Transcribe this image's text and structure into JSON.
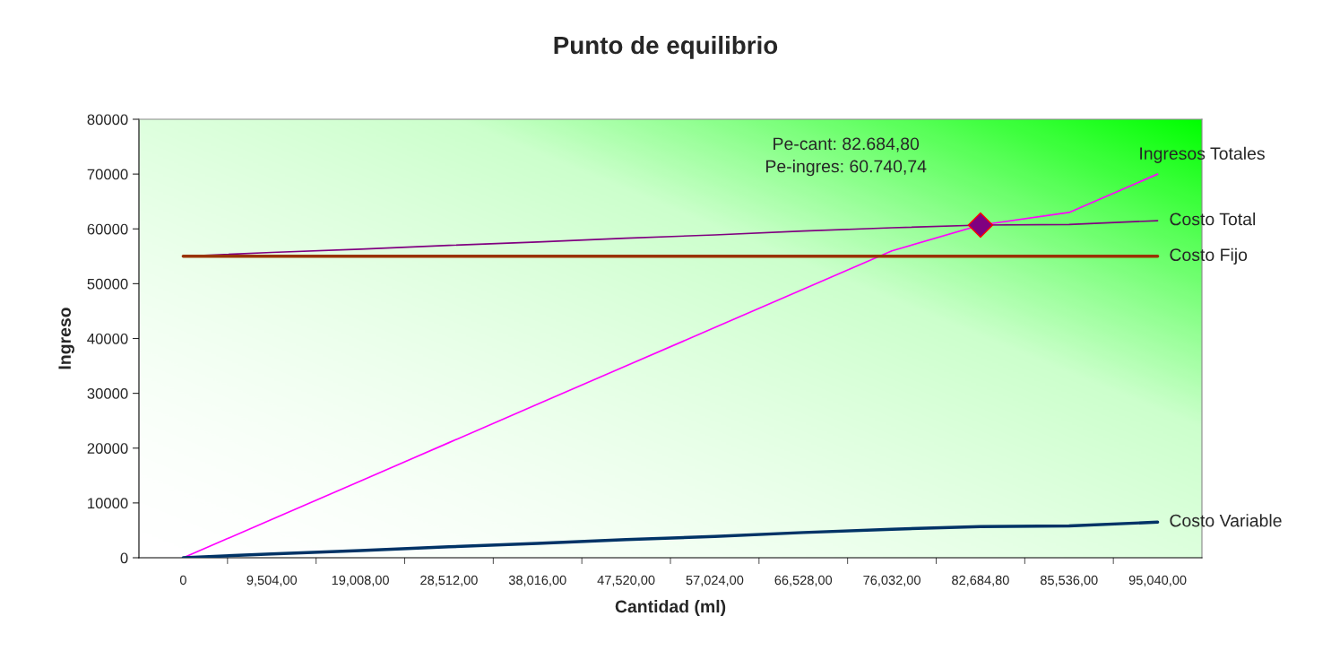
{
  "chart_data": {
    "type": "line",
    "title": "Punto de equilibrio",
    "xlabel": "Cantidad (ml)",
    "ylabel": "Ingreso",
    "categories": [
      "0",
      "9,504,00",
      "19,008,00",
      "28,512,00",
      "38,016,00",
      "47,520,00",
      "57,024,00",
      "66,528,00",
      "76,032,00",
      "82,684,80",
      "85,536,00",
      "95,040,00"
    ],
    "series": [
      {
        "name": "Ingresos Totales",
        "color": "#ff00ff",
        "values": [
          0,
          7000,
          14000,
          21000,
          28000,
          35000,
          42000,
          49000,
          56000,
          60700,
          63000,
          70000
        ]
      },
      {
        "name": "Costo Total",
        "color": "#800080",
        "values": [
          55000,
          55700,
          56300,
          57000,
          57600,
          58300,
          58900,
          59600,
          60200,
          60700,
          60800,
          61500
        ]
      },
      {
        "name": "Costo Fijo",
        "color": "#993300",
        "values": [
          55000,
          55000,
          55000,
          55000,
          55000,
          55000,
          55000,
          55000,
          55000,
          55000,
          55000,
          55000
        ]
      },
      {
        "name": "Costo Variable",
        "color": "#003366",
        "values": [
          0,
          700,
          1300,
          2000,
          2600,
          3300,
          3900,
          4600,
          5200,
          5700,
          5800,
          6500
        ]
      },
      {
        "type": "scatter",
        "marker": "diamond",
        "color": "#800080",
        "x": [
          "82,684,80"
        ],
        "values": [
          60700
        ]
      }
    ],
    "annotations": [
      "Pe-cant: 82.684,80\nPe-ingres: 60.740,74"
    ],
    "ylim": [
      0,
      80000
    ],
    "yticks": [
      0,
      10000,
      20000,
      30000,
      40000,
      50000,
      60000,
      70000,
      80000
    ],
    "grid": false,
    "legend": false,
    "marker": "none"
  }
}
